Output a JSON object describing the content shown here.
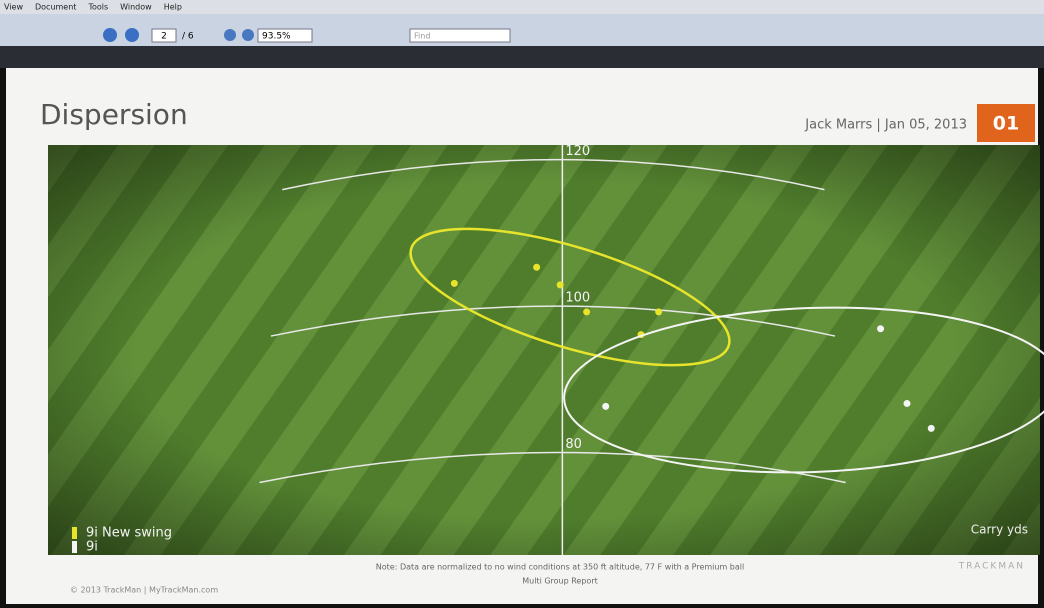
{
  "menu": [
    "View",
    "Document",
    "Tools",
    "Window",
    "Help"
  ],
  "toolbar": {
    "page_current": "2",
    "page_total": "/ 6",
    "zoom": "93.5%",
    "find": "Find"
  },
  "slide": {
    "title": "Dispersion",
    "author_date": "Jack Marrs | Jan 05, 2013",
    "page_number": "01",
    "note": "Note: Data are normalized to no wind conditions at 350 ft altitude, 77 F with a Premium ball",
    "report": "Multi Group Report",
    "copyright": "© 2013 TrackMan | MyTrackMan.com",
    "logo": "TRACKMAN"
  },
  "chart_data": {
    "type": "scatter",
    "y_label": "Carry yds",
    "xlim": [
      -70,
      65
    ],
    "ylim": [
      66,
      122
    ],
    "yticks": [
      80,
      100,
      120
    ],
    "legend": "bottom-left",
    "series": [
      {
        "name": "9i New swing",
        "color": "#e8e42c",
        "x": [
          -14.7,
          -3.5,
          -0.3,
          3.3,
          13.1,
          10.7
        ],
        "values": [
          103.1,
          105.3,
          102.9,
          99.2,
          99.2,
          96.1
        ]
      },
      {
        "name": "9i",
        "color": "#f4f4f4",
        "x": [
          43.3,
          5.9,
          46.9,
          50.2
        ],
        "values": [
          96.9,
          86.3,
          86.7,
          83.3
        ]
      }
    ]
  }
}
